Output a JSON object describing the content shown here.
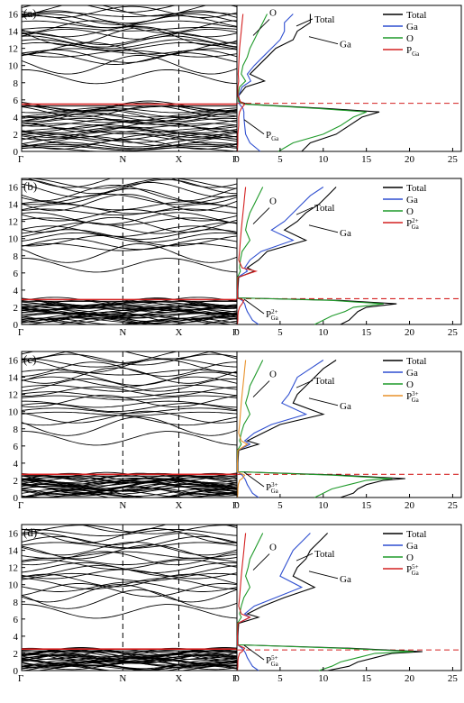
{
  "chart_data": [
    {
      "type": "line",
      "panel_label": "(a)",
      "band": {
        "k_labels": [
          "Γ",
          "N",
          "X",
          "Γ"
        ],
        "ylim": [
          0,
          17
        ],
        "yticks": [
          0,
          2,
          4,
          6,
          8,
          10,
          12,
          14,
          16
        ],
        "fermi_level": 5.6,
        "vbm": 5.5,
        "cbm": 7.8
      },
      "dos": {
        "xlim": [
          0,
          26
        ],
        "xticks": [
          0,
          5,
          10,
          15,
          20,
          25
        ],
        "ylim": [
          0,
          17
        ],
        "legend": [
          "Total",
          "Ga",
          "O",
          "P_Ga"
        ],
        "legend_texts": {
          "main": [
            "Total",
            "Ga",
            "O"
          ],
          "p_base": "P",
          "p_sub": "Ga",
          "p_sup": ""
        },
        "annotations": {
          "O": "O",
          "Total": "Total",
          "Ga": "Ga",
          "P_base": "P",
          "P_sub": "Ga",
          "P_sup": ""
        },
        "series": [
          {
            "name": "Total",
            "color": "#000000",
            "y": [
              0,
              1,
              2,
              3,
              4,
              4.6,
              5,
              5.5,
              5.8,
              6.5,
              7.5,
              8.2,
              9,
              10,
              11,
              12,
              13,
              14,
              15,
              16
            ],
            "x": [
              7.5,
              8.5,
              11.5,
              13,
              14.5,
              16.5,
              10.5,
              1.2,
              0.3,
              0.2,
              1,
              3.2,
              1.5,
              2.5,
              3.5,
              4.5,
              6.5,
              7,
              8.5,
              8.5
            ]
          },
          {
            "name": "Ga",
            "color": "#2f4fd0",
            "y": [
              0,
              1,
              2,
              3,
              4,
              4.6,
              5,
              5.5,
              5.8,
              6.5,
              7.5,
              8.2,
              9,
              10,
              11,
              12,
              13,
              14,
              15,
              16
            ],
            "x": [
              2.7,
              1.5,
              1,
              0.9,
              0.8,
              0.8,
              0.7,
              0.3,
              0.2,
              0.2,
              0.6,
              1.6,
              1.2,
              2,
              3,
              4,
              5,
              5.5,
              5.5,
              6.5
            ]
          },
          {
            "name": "O",
            "color": "#1f9a2a",
            "y": [
              0,
              1,
              2,
              3,
              4,
              4.6,
              5,
              5.5,
              5.8,
              6.5,
              7.5,
              8.2,
              9,
              10,
              11,
              12,
              13,
              14,
              15,
              16
            ],
            "x": [
              4.8,
              6.5,
              10,
              12,
              13.5,
              15,
              9.5,
              0.8,
              0.2,
              0.1,
              0.3,
              1,
              0.5,
              0.7,
              1.2,
              1.5,
              2,
              2.5,
              3,
              3.5
            ]
          },
          {
            "name": "P_Ga",
            "color": "#d42020",
            "y": [
              0,
              1,
              2,
              3,
              4,
              4.6,
              5,
              5.5,
              5.8,
              6.5,
              7.5,
              8.2,
              9,
              10,
              11,
              12,
              13,
              14,
              15,
              16
            ],
            "x": [
              0.05,
              0.1,
              0.1,
              0.2,
              0.2,
              0.3,
              0.5,
              0.9,
              0.4,
              0.1,
              0.1,
              0.2,
              0.15,
              0.2,
              0.25,
              0.3,
              0.4,
              0.5,
              0.6,
              0.7
            ]
          }
        ]
      }
    },
    {
      "type": "line",
      "panel_label": "(b)",
      "band": {
        "k_labels": [
          "Γ",
          "N",
          "X",
          "Γ"
        ],
        "ylim": [
          0,
          17
        ],
        "yticks": [
          0,
          2,
          4,
          6,
          8,
          10,
          12,
          14,
          16
        ],
        "fermi_level": 3.0,
        "vbm": 2.9,
        "cbm": 6.0
      },
      "dos": {
        "xlim": [
          0,
          26
        ],
        "xticks": [
          0,
          5,
          10,
          15,
          20,
          25
        ],
        "ylim": [
          0,
          17
        ],
        "legend": [
          "Total",
          "Ga",
          "O",
          "P_Ga^2+"
        ],
        "legend_texts": {
          "main": [
            "Total",
            "Ga",
            "O"
          ],
          "p_base": "P",
          "p_sub": "Ga",
          "p_sup": "2+"
        },
        "annotations": {
          "O": "O",
          "Total": "Total",
          "Ga": "Ga",
          "P_base": "P",
          "P_sub": "Ga",
          "P_sup": "2+"
        },
        "series": [
          {
            "name": "Total",
            "color": "#000000",
            "y": [
              0,
              0.5,
              1,
              1.5,
              2,
              2.4,
              2.8,
              3.1,
              4,
              5.5,
              6.2,
              6.6,
              7.5,
              8.5,
              9.8,
              11,
              12,
              13,
              14,
              15,
              16
            ],
            "x": [
              12,
              13,
              13.5,
              14,
              15,
              18.5,
              12,
              0.1,
              0.1,
              0.2,
              2,
              1.2,
              2.5,
              3.5,
              8,
              5.5,
              7,
              8,
              9.5,
              10.5,
              11.5
            ]
          },
          {
            "name": "Ga",
            "color": "#2f4fd0",
            "y": [
              0,
              0.5,
              1,
              1.5,
              2,
              2.4,
              2.8,
              3.1,
              4,
              5.5,
              6.2,
              6.6,
              7.5,
              8.5,
              9.8,
              11,
              12,
              13,
              14,
              15,
              16
            ],
            "x": [
              2.5,
              1.8,
              1.5,
              1.2,
              1,
              0.9,
              0.6,
              0.05,
              0.05,
              0.1,
              1.2,
              0.9,
              1.5,
              2.8,
              6.5,
              4,
              5.5,
              6.5,
              7.5,
              8.5,
              10
            ]
          },
          {
            "name": "O",
            "color": "#1f9a2a",
            "y": [
              0,
              0.5,
              1,
              1.5,
              2,
              2.4,
              2.8,
              3.1,
              4,
              5.5,
              6.2,
              6.6,
              7.5,
              8.5,
              9.8,
              11,
              12,
              13,
              14,
              15,
              16
            ],
            "x": [
              9,
              10,
              11,
              12.5,
              13.5,
              17,
              11,
              0.05,
              0.05,
              0.05,
              0.4,
              0.3,
              0.4,
              0.6,
              1.5,
              1,
              1.2,
              1.5,
              2,
              2.5,
              3
            ]
          },
          {
            "name": "P_Ga^2+",
            "color": "#d42020",
            "y": [
              0,
              0.5,
              1,
              1.5,
              2,
              2.4,
              2.8,
              3.1,
              4,
              5.5,
              6.2,
              6.6,
              7.5,
              8.5,
              9.8,
              11,
              12,
              13,
              14,
              15,
              16
            ],
            "x": [
              0.05,
              0.1,
              0.1,
              0.15,
              0.3,
              0.6,
              0.8,
              0.05,
              0.05,
              0.1,
              2.2,
              0.6,
              0.2,
              0.3,
              0.4,
              0.5,
              0.6,
              0.7,
              0.8,
              0.9,
              1
            ]
          }
        ]
      }
    },
    {
      "type": "line",
      "panel_label": "(c)",
      "band": {
        "k_labels": [
          "Γ",
          "N",
          "X",
          "Γ"
        ],
        "ylim": [
          0,
          17
        ],
        "yticks": [
          0,
          2,
          4,
          6,
          8,
          10,
          12,
          14,
          16
        ],
        "fermi_level": 2.7,
        "vbm": 2.7,
        "cbm": 6.0
      },
      "dos": {
        "xlim": [
          0,
          26
        ],
        "xticks": [
          0,
          5,
          10,
          15,
          20,
          25
        ],
        "ylim": [
          0,
          17
        ],
        "legend": [
          "Total",
          "Ga",
          "O",
          "P_Ga^3+"
        ],
        "legend_texts": {
          "main": [
            "Total",
            "Ga",
            "O"
          ],
          "p_base": "P",
          "p_sub": "Ga",
          "p_sup": "3+"
        },
        "annotations": {
          "O": "O",
          "Total": "Total",
          "Ga": "Ga",
          "P_base": "P",
          "P_sub": "Ga",
          "P_sup": "3+"
        },
        "series": [
          {
            "name": "Total",
            "color": "#000000",
            "y": [
              0,
              0.5,
              1,
              1.5,
              2,
              2.2,
              2.6,
              3.0,
              4,
              5.5,
              6.2,
              6.6,
              7.5,
              8.5,
              9.7,
              11,
              12,
              13,
              14,
              15,
              16
            ],
            "x": [
              12,
              13.5,
              14,
              15,
              17,
              19.5,
              12,
              0.1,
              0.1,
              0.2,
              2.5,
              1.2,
              3,
              5,
              10,
              6.5,
              7,
              8,
              9,
              10,
              11.5
            ]
          },
          {
            "name": "Ga",
            "color": "#2f4fd0",
            "y": [
              0,
              0.5,
              1,
              1.5,
              2,
              2.2,
              2.6,
              3.0,
              4,
              5.5,
              6.2,
              6.6,
              7.5,
              8.5,
              9.7,
              11,
              12,
              13,
              14,
              15,
              16
            ],
            "x": [
              2.5,
              1.8,
              1.5,
              1.2,
              1,
              0.9,
              0.6,
              0.05,
              0.05,
              0.1,
              1.5,
              0.9,
              2,
              4,
              8,
              5.2,
              6,
              6.5,
              7,
              8.5,
              10
            ]
          },
          {
            "name": "O",
            "color": "#1f9a2a",
            "y": [
              0,
              0.5,
              1,
              1.5,
              2,
              2.2,
              2.6,
              3.0,
              4,
              5.5,
              6.2,
              6.6,
              7.5,
              8.5,
              9.7,
              11,
              12,
              13,
              14,
              15,
              16
            ],
            "x": [
              9,
              10,
              11,
              13,
              15,
              18,
              11,
              0.05,
              0.05,
              0.05,
              0.5,
              0.3,
              0.5,
              0.8,
              1.5,
              1,
              1.3,
              1.5,
              2,
              2.5,
              3
            ]
          },
          {
            "name": "P_Ga^3+",
            "color": "#e8912a",
            "y": [
              0,
              0.5,
              1,
              1.5,
              2,
              2.2,
              2.6,
              3.0,
              4,
              5.5,
              6.2,
              6.6,
              7.5,
              8.5,
              9.7,
              11,
              12,
              13,
              14,
              15,
              16
            ],
            "x": [
              0.05,
              0.1,
              0.1,
              0.15,
              0.3,
              0.6,
              0.9,
              0.05,
              0.05,
              0.1,
              1.2,
              0.5,
              0.2,
              0.3,
              0.4,
              0.5,
              0.6,
              0.7,
              0.8,
              0.9,
              1
            ]
          }
        ]
      }
    },
    {
      "type": "line",
      "panel_label": "(d)",
      "band": {
        "k_labels": [
          "Γ",
          "N",
          "X",
          "Γ"
        ],
        "ylim": [
          0,
          17
        ],
        "yticks": [
          0,
          2,
          4,
          6,
          8,
          10,
          12,
          14,
          16
        ],
        "fermi_level": 2.4,
        "vbm": 2.5,
        "cbm": 6.0
      },
      "dos": {
        "xlim": [
          0,
          26
        ],
        "xticks": [
          0,
          5,
          10,
          15,
          20,
          25
        ],
        "ylim": [
          0,
          17
        ],
        "legend": [
          "Total",
          "Ga",
          "O",
          "P_Ga^5+"
        ],
        "legend_texts": {
          "main": [
            "Total",
            "Ga",
            "O"
          ],
          "p_base": "P",
          "p_sub": "Ga",
          "p_sup": "5+"
        },
        "annotations": {
          "O": "O",
          "Total": "Total",
          "Ga": "Ga",
          "P_base": "P",
          "P_sub": "Ga",
          "P_sup": "5+"
        },
        "series": [
          {
            "name": "Total",
            "color": "#000000",
            "y": [
              0,
              0.5,
              1,
              1.5,
              2,
              2.2,
              2.6,
              3.0,
              4,
              5.5,
              6.2,
              6.6,
              7.5,
              8.5,
              9.7,
              11,
              12,
              13,
              14,
              15,
              16
            ],
            "x": [
              10.5,
              13,
              14,
              16,
              18,
              21.5,
              13,
              0.1,
              0.1,
              0.2,
              2.5,
              1.2,
              3,
              5.5,
              9,
              6.5,
              7,
              8,
              8.5,
              9.5,
              10.5
            ]
          },
          {
            "name": "Ga",
            "color": "#2f4fd0",
            "y": [
              0,
              0.5,
              1,
              1.5,
              2,
              2.2,
              2.6,
              3.0,
              4,
              5.5,
              6.2,
              6.6,
              7.5,
              8.5,
              9.7,
              11,
              12,
              13,
              14,
              15,
              16
            ],
            "x": [
              2.5,
              1.8,
              1.5,
              1.2,
              1,
              0.9,
              0.6,
              0.05,
              0.05,
              0.1,
              1.5,
              0.9,
              2,
              4.5,
              7.5,
              5,
              5.5,
              6,
              6.5,
              7.5,
              8.5
            ]
          },
          {
            "name": "O",
            "color": "#1f9a2a",
            "y": [
              0,
              0.5,
              1,
              1.5,
              2,
              2.2,
              2.6,
              3.0,
              4,
              5.5,
              6.2,
              6.6,
              7.5,
              8.5,
              9.7,
              11,
              12,
              13,
              14,
              15,
              16
            ],
            "x": [
              9.5,
              11,
              12,
              14,
              16,
              20.5,
              12,
              0.05,
              0.05,
              0.05,
              0.5,
              0.3,
              0.5,
              0.8,
              1.5,
              1,
              1.3,
              1.5,
              2,
              2.5,
              3
            ]
          },
          {
            "name": "P_Ga^5+",
            "color": "#d42020",
            "y": [
              0,
              0.5,
              1,
              1.5,
              2,
              2.2,
              2.6,
              3.0,
              4,
              5.5,
              6.2,
              6.6,
              7.5,
              8.5,
              9.7,
              11,
              12,
              13,
              14,
              15,
              16
            ],
            "x": [
              0.05,
              0.1,
              0.1,
              0.15,
              0.3,
              0.6,
              0.9,
              0.05,
              0.05,
              0.1,
              1.5,
              0.5,
              0.2,
              0.3,
              0.4,
              0.5,
              0.6,
              0.7,
              0.8,
              0.9,
              1
            ]
          }
        ]
      }
    }
  ]
}
